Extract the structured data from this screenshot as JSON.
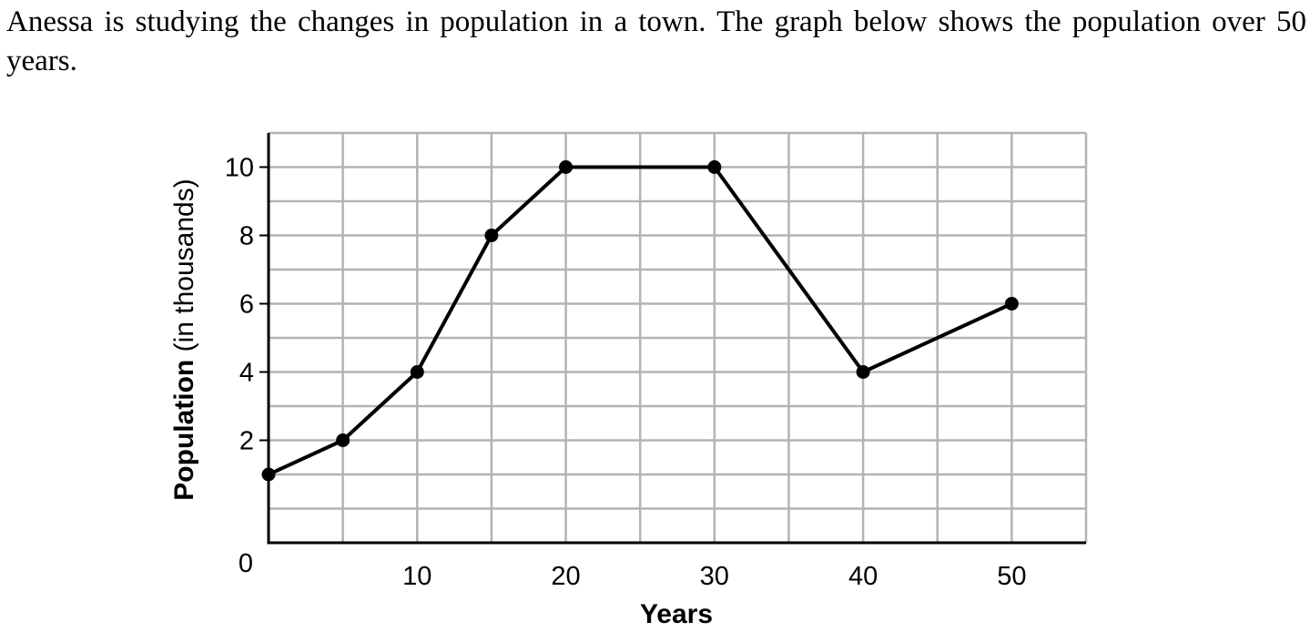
{
  "prompt": {
    "text": "Anessa is studying the changes in population in a town. The graph below shows the population over 50 years."
  },
  "chart_data": {
    "type": "line",
    "title": "",
    "xlabel": "Years",
    "ylabel_bold": "Population",
    "ylabel_rest": " (in thousands)",
    "xlim": [
      0,
      55
    ],
    "ylim": [
      -1,
      11
    ],
    "x_grid_step": 5,
    "y_grid_step": 1,
    "grid": true,
    "origin_label": "0",
    "x_ticks": [
      10,
      20,
      30,
      40,
      50
    ],
    "y_ticks": [
      2,
      4,
      6,
      8,
      10
    ],
    "x_tick_labels": [
      "10",
      "20",
      "30",
      "40",
      "50"
    ],
    "y_tick_labels": [
      "2",
      "4",
      "6",
      "8",
      "10"
    ],
    "x": [
      0,
      5,
      10,
      15,
      20,
      30,
      40,
      50
    ],
    "y": [
      1,
      2,
      4,
      8,
      10,
      10,
      4,
      6
    ],
    "colors": {
      "line": "#000000",
      "grid": "#b3b3b3"
    }
  }
}
